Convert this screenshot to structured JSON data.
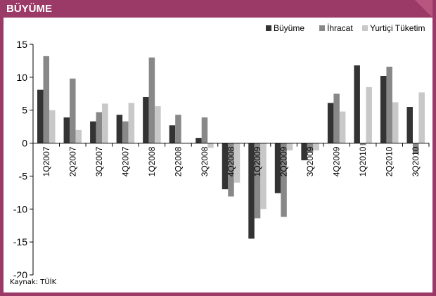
{
  "header": {
    "title": "BÜYÜME"
  },
  "source": "Kaynak: TÜİK",
  "colors": {
    "frame": "#9c3a67",
    "corner": "#b9567f",
    "series": [
      "#333333",
      "#888888",
      "#c8c8c8"
    ]
  },
  "chart_data": {
    "type": "bar",
    "categories": [
      "1Q2007",
      "2Q2007",
      "3Q2007",
      "4Q2007",
      "1Q2008",
      "2Q2008",
      "3Q2008",
      "4Q2008",
      "1Q2009",
      "2Q2009",
      "3Q2009",
      "4Q2009",
      "1Q2010",
      "2Q2010",
      "3Q2010"
    ],
    "series": [
      {
        "name": "Büyüme",
        "values": [
          8.1,
          3.9,
          3.3,
          4.3,
          7.0,
          2.7,
          0.8,
          -7.0,
          -14.5,
          -7.6,
          -2.6,
          6.1,
          11.8,
          10.2,
          5.5
        ]
      },
      {
        "name": "İhracat",
        "values": [
          13.2,
          9.8,
          4.7,
          3.3,
          13.0,
          4.3,
          3.9,
          -8.1,
          -11.4,
          -11.2,
          -1.4,
          7.5,
          -0.3,
          11.6,
          -1.6
        ]
      },
      {
        "name": "Yurtiçi Tüketim",
        "values": [
          5.0,
          2.0,
          6.0,
          6.1,
          5.6,
          0.0,
          -0.7,
          -6.0,
          -10.0,
          -1.1,
          -1.1,
          4.8,
          8.5,
          6.2,
          7.7
        ]
      }
    ],
    "ylim": [
      -20,
      15
    ],
    "yticks": [
      "15",
      "10",
      "5",
      "0",
      "-5",
      "-10",
      "-15",
      "-20"
    ],
    "legend": "top-right",
    "grid": false
  }
}
